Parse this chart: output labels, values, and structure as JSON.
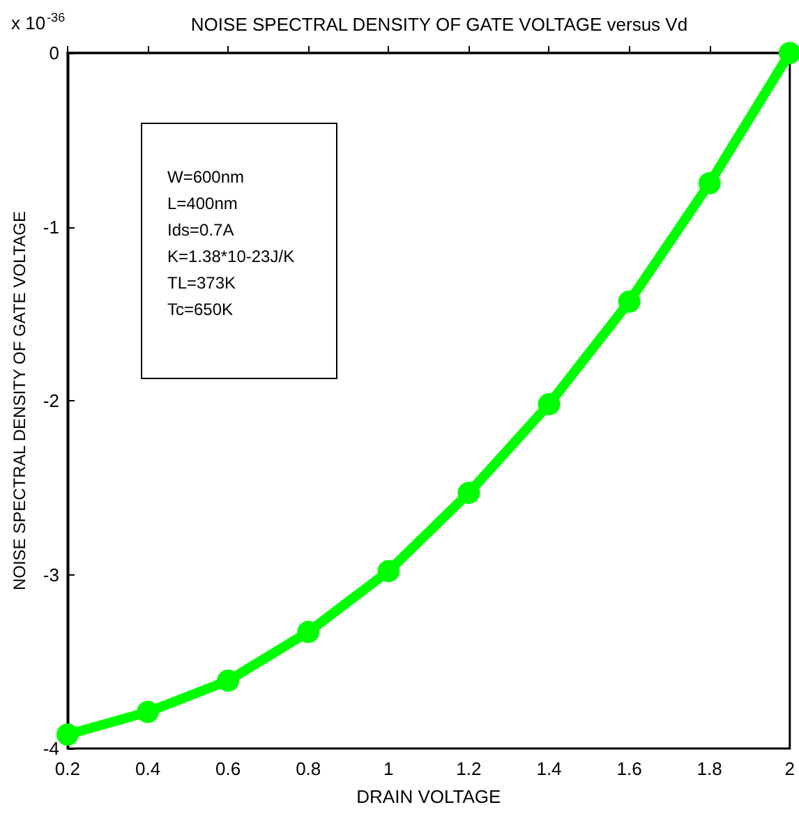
{
  "chart_data": {
    "type": "line",
    "title": "NOISE SPECTRAL DENSITY OF GATE VOLTAGE versus Vd",
    "xlabel": "DRAIN VOLTAGE",
    "ylabel": "NOISE SPECTRAL DENSITY OF GATE VOLTAGE",
    "x": [
      0.2,
      0.4,
      0.6,
      0.8,
      1,
      1.2,
      1.4,
      1.6,
      1.8,
      2
    ],
    "series": [
      {
        "color": "#00ff00",
        "values": [
          -3.92,
          -3.79,
          -3.61,
          -3.33,
          -2.98,
          -2.53,
          -2.02,
          -1.43,
          -0.75,
          0
        ]
      }
    ],
    "xlim": [
      0.2,
      2
    ],
    "xticks": [
      0.2,
      0.4,
      0.6,
      0.8,
      1,
      1.2,
      1.4,
      1.6,
      1.8,
      2
    ],
    "ylim": [
      -4,
      0
    ],
    "yticks": [
      -4,
      -3,
      -2,
      -1,
      0
    ],
    "grid": false,
    "marker": "circle",
    "line_style": "solid",
    "annotations": [
      "x 10$^{-36}$",
      "W=600nm\nL=400nm\nIds=0.7A\nK=1.38*10-23J/K\nTL=373K\nTc=650K"
    ]
  }
}
